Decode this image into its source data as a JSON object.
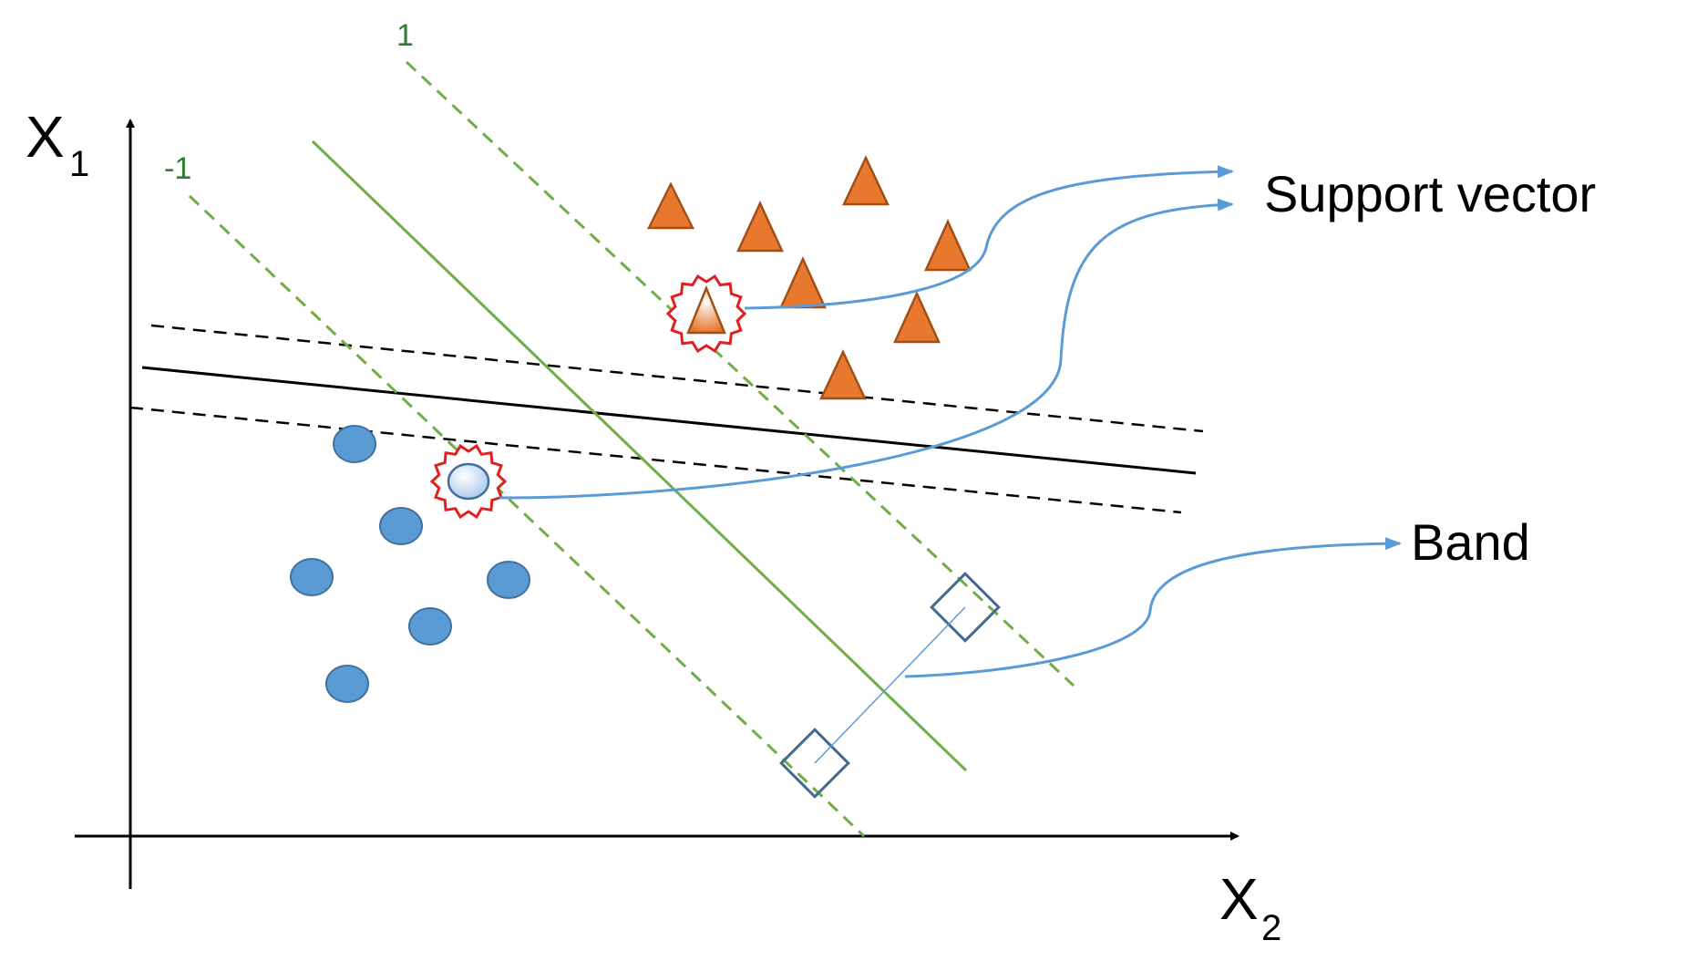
{
  "axes": {
    "y_label": "X",
    "y_sub": "1",
    "x_label": "X",
    "x_sub": "2"
  },
  "margin_labels": {
    "positive": "1",
    "negative": "-1"
  },
  "annotations": {
    "support_vector": "Support vector",
    "band": "Band"
  },
  "colors": {
    "triangle": "#e8782e",
    "circle": "#5b9bd5",
    "svm_line": "#70ad47",
    "arrow": "#5b9bd5",
    "highlight": "#e02020",
    "band_box": "#44698f"
  }
}
